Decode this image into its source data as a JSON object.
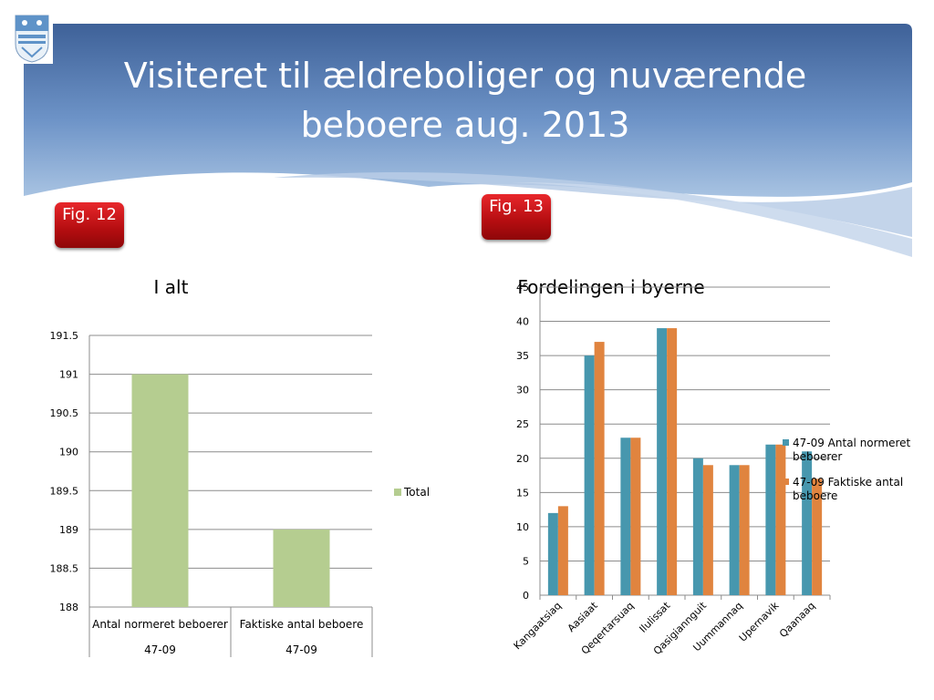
{
  "slide": {
    "title": "Visiteret til ældreboliger og nuværende beboere aug.  2013",
    "badge_left": "Fig. 12",
    "badge_right": "Fig. 13"
  },
  "colors": {
    "banner_top": "#3e6198",
    "banner_bottom": "#8fb0d8",
    "total_bar": "#b5cd90",
    "series1": "#4797ae",
    "series2": "#e0843f"
  },
  "chart_data": [
    {
      "type": "bar",
      "title": "I alt",
      "categories": [
        "Antal normeret beboerer",
        "Faktiske antal beboere"
      ],
      "category_group": "47-09",
      "series": [
        {
          "name": "Total",
          "values": [
            191,
            189
          ]
        }
      ],
      "ylim": [
        188,
        191.5
      ],
      "yticks": [
        "188",
        "188.5",
        "189",
        "189.5",
        "190",
        "190.5",
        "191",
        "191.5"
      ],
      "grid": true,
      "legend": "right"
    },
    {
      "type": "bar",
      "title": "Fordelingen i byerne",
      "categories": [
        "Kangaatsiaq",
        "Aasiaat",
        "Qeqertarsuaq",
        "Ilulissat",
        "Qasigiannguit",
        "Uummannaq",
        "Upernavik",
        "Qaanaaq"
      ],
      "series": [
        {
          "name": "47-09 Antal normeret beboerer",
          "values": [
            12,
            35,
            23,
            39,
            20,
            19,
            22,
            21
          ]
        },
        {
          "name": "47-09 Faktiske antal beboere",
          "values": [
            13,
            37,
            23,
            39,
            19,
            19,
            22,
            17
          ]
        }
      ],
      "ylim": [
        0,
        45
      ],
      "yticks": [
        "0",
        "5",
        "10",
        "15",
        "20",
        "25",
        "30",
        "35",
        "40",
        "45"
      ],
      "grid": true,
      "legend": "right"
    }
  ]
}
